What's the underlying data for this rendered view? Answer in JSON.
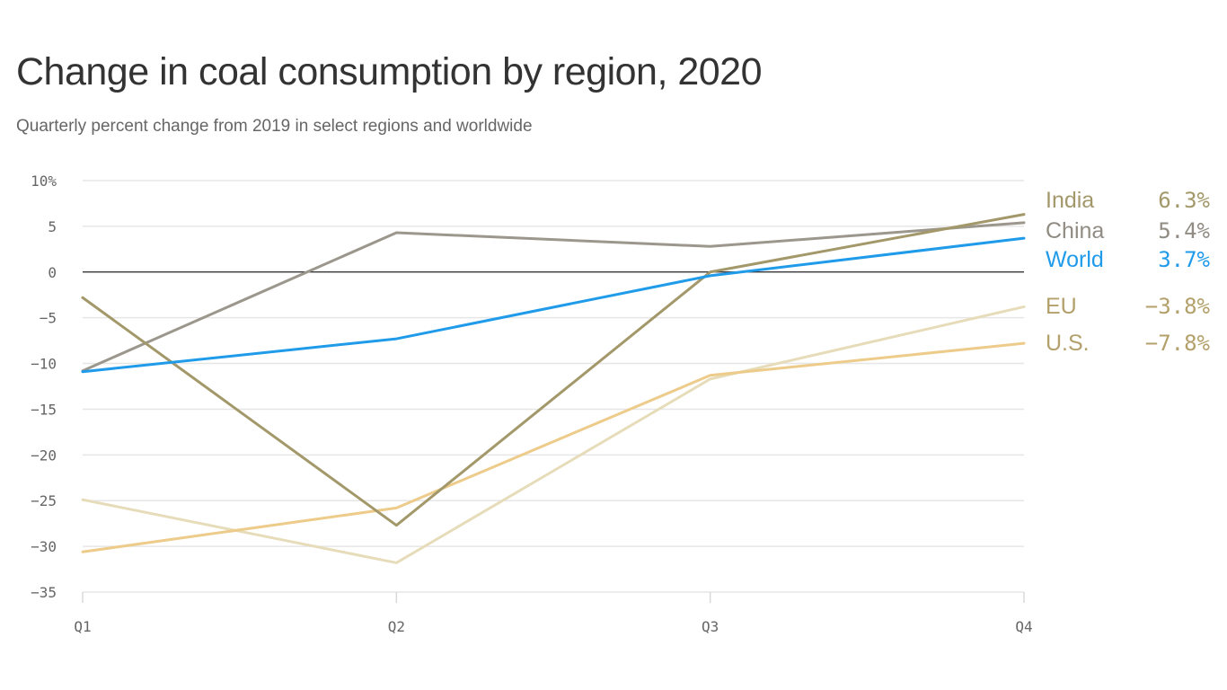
{
  "header": {
    "title": "Change in coal consumption by region, 2020",
    "subtitle": "Quarterly percent change from 2019 in select regions and worldwide"
  },
  "chart_data": {
    "type": "line",
    "title": "Change in coal consumption by region, 2020",
    "subtitle": "Quarterly percent change from 2019 in select regions and worldwide",
    "xlabel": "",
    "ylabel": "",
    "categories": [
      "Q1",
      "Q2",
      "Q3",
      "Q4"
    ],
    "ylim": [
      -35,
      10
    ],
    "y_ticks": [
      {
        "value": 10,
        "label": "10%"
      },
      {
        "value": 5,
        "label": "5"
      },
      {
        "value": 0,
        "label": "0"
      },
      {
        "value": -5,
        "label": "−5"
      },
      {
        "value": -10,
        "label": "−10"
      },
      {
        "value": -15,
        "label": "−15"
      },
      {
        "value": -20,
        "label": "−20"
      },
      {
        "value": -25,
        "label": "−25"
      },
      {
        "value": -30,
        "label": "−30"
      },
      {
        "value": -35,
        "label": "−35"
      }
    ],
    "grid": true,
    "zero_line": true,
    "legend_position": "right",
    "series": [
      {
        "name": "EU",
        "color": "#e6dcb9",
        "values": [
          -24.9,
          -31.8,
          -11.7,
          -3.8
        ],
        "value_label": "−3.8%"
      },
      {
        "name": "U.S.",
        "color": "#edcb8a",
        "values": [
          -30.6,
          -25.8,
          -11.3,
          -7.8
        ],
        "value_label": "−7.8%"
      },
      {
        "name": "China",
        "color": "#9c978d",
        "values": [
          -10.8,
          4.3,
          2.8,
          5.4
        ],
        "value_label": "5.4%"
      },
      {
        "name": "India",
        "color": "#a3986a",
        "values": [
          -2.8,
          -27.7,
          0.0,
          6.3
        ],
        "value_label": "6.3%"
      },
      {
        "name": "World",
        "color": "#1f9bea",
        "values": [
          -10.9,
          -7.3,
          -0.4,
          3.7
        ],
        "value_label": "3.7%"
      }
    ],
    "legend_order": [
      "India",
      "China",
      "World",
      "EU",
      "U.S."
    ],
    "legend_colors": {
      "India": "#a3986a",
      "China": "#918c83",
      "World": "#1f9bea",
      "EU": "#b3a06a",
      "U.S.": "#b3a06a"
    }
  }
}
